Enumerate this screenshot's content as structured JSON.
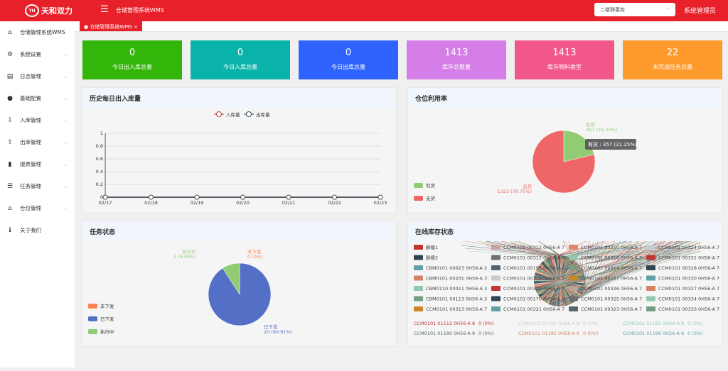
{
  "header": {
    "logo_text": "天和双力",
    "app_title": "仓储管理系统WMS",
    "warehouse_select": "二楼静置库",
    "user": "系统管理员"
  },
  "sidebar": {
    "items": [
      {
        "label": "仓储管理系统WMS",
        "icon": "home-icon",
        "glyph": "⌂",
        "chev": false
      },
      {
        "label": "系统设置",
        "icon": "gear-icon",
        "glyph": "⚙",
        "chev": true
      },
      {
        "label": "日志管理",
        "icon": "log-icon",
        "glyph": "▤",
        "chev": true
      },
      {
        "label": "基础配置",
        "icon": "config-icon",
        "glyph": "●",
        "chev": true
      },
      {
        "label": "入库管理",
        "icon": "inbound-icon",
        "glyph": "⇩",
        "chev": true
      },
      {
        "label": "出库管理",
        "icon": "outbound-icon",
        "glyph": "⇧",
        "chev": true
      },
      {
        "label": "报表管理",
        "icon": "bar-chart-icon",
        "glyph": "▮",
        "chev": true
      },
      {
        "label": "任务管理",
        "icon": "task-icon",
        "glyph": "☰",
        "chev": true
      },
      {
        "label": "仓位管理",
        "icon": "location-icon",
        "glyph": "⌂",
        "chev": true
      },
      {
        "label": "关于我们",
        "icon": "info-icon",
        "glyph": "ℹ",
        "chev": false
      }
    ]
  },
  "tabs": [
    {
      "label": "仓储管理系统WMS",
      "close": "×"
    }
  ],
  "cards": [
    {
      "value": "0",
      "label": "今日出入库总量",
      "color": "#33b50a"
    },
    {
      "value": "0",
      "label": "今日入库总量",
      "color": "#0ab3aa"
    },
    {
      "value": "0",
      "label": "今日出库总量",
      "color": "#2f63fd"
    },
    {
      "value": "1413",
      "label": "库存总数量",
      "color": "#d67ee8"
    },
    {
      "value": "1413",
      "label": "库存物料类型",
      "color": "#f2578a"
    },
    {
      "value": "22",
      "label": "未完成任务总量",
      "color": "#fd9a2b"
    }
  ],
  "panels": {
    "history": "历史每日出入库量",
    "utilization": "仓位利用率",
    "task_status": "任务状态",
    "inventory": "在线库存状态"
  },
  "chart_data": [
    {
      "type": "line",
      "x": [
        "02/17",
        "02/18",
        "02/19",
        "02/20",
        "02/21",
        "02/22",
        "02/23"
      ],
      "ylim": [
        0,
        1
      ],
      "yticks": [
        "0",
        "0.2",
        "0.4",
        "0.6",
        "0.8",
        "1"
      ],
      "legend": "top-center",
      "grid": true,
      "series": [
        {
          "name": "入库量",
          "values": [
            0,
            0,
            0,
            0,
            0,
            0,
            0
          ],
          "color": "#c23531"
        },
        {
          "name": "出库量",
          "values": [
            0,
            0,
            0,
            0,
            0,
            0,
            0
          ],
          "color": "#2f4554"
        }
      ]
    },
    {
      "type": "pie",
      "legend": "bottom-left",
      "slices": [
        {
          "name": "有货",
          "value": 357,
          "pct": "21.25%",
          "color": "#91cc75"
        },
        {
          "name": "无货",
          "value": 1323,
          "pct": "78.75%",
          "color": "#ee6666"
        }
      ],
      "tooltip": "有货 : 357 (21.25%)"
    },
    {
      "type": "pie",
      "legend": "bottom-left",
      "slices": [
        {
          "name": "未下发",
          "value": 0,
          "pct": "0%",
          "color": "#fc8452"
        },
        {
          "name": "已下发",
          "value": 20,
          "pct": "90.91%",
          "color": "#5470c6"
        },
        {
          "name": "执行中",
          "value": 2,
          "pct": "9.09%",
          "color": "#91cc75"
        }
      ]
    },
    {
      "type": "pie",
      "legend": "grid",
      "series_names": [
        "静模1",
        "CCM0101 00312 0H56-A 7",
        "CCM0101 00310 0H56-A 7",
        "CCM0101 00324 0H56-A 7",
        "静模2",
        "CCM0101 00311 0H56-A 7",
        "CCM0101 00318 0H56-A 7",
        "CCM0101 00331 0H56-A 7",
        "CBM0101 00023 0H56-A 2",
        "CCM0101 00193 0H56-A 7",
        "CCM0101 00314 0H56-A 7",
        "CCM0101 00328 0H56-A 7",
        "CBM0101 00201 0H56-A 3",
        "CCM0101 00319 0H56-A 7",
        "CCM0101 00157 0H56-A 7",
        "CCM0101 00330 0H56-A 7",
        "CBM0110 00011 0H56-A 3",
        "CCM0101 00320 0H56-A 7",
        "CCM0101 00326 0H56-A 7",
        "CCM0101 00327 0H56-A 7",
        "CBM0101 00113 0H56-A 3",
        "CCM0101 00170 0H56-A 7",
        "CCM0101 00325 0H56-A 7",
        "CCM0101 00334 0H56-A 7",
        "CCM0101 00313 0H56-A 7",
        "CCM0101 00321 0H56-A 7",
        "CCM0101 00323 0H56-A 7",
        "CCM0101 00333 0H56-A 7"
      ],
      "palette": [
        "#c23531",
        "#c4a49c",
        "#dd8668",
        "#c4ccd3",
        "#2f4554",
        "#6e7074",
        "#8fcbae",
        "#c23531",
        "#61a0a8",
        "#546570",
        "#749f83",
        "#2f4554",
        "#d48265",
        "#c4ccd3",
        "#ca8622",
        "#61a0a8",
        "#91c7ae",
        "#c23531",
        "#bda29a",
        "#d48265",
        "#749f83",
        "#2f4554",
        "#6e7074",
        "#91c7ae",
        "#ca8622",
        "#61a0a8",
        "#546570",
        "#749f83"
      ],
      "labels": [
        "CCM0101 01112 0H56-A 8",
        "CCM0101 01182 0H56-A 8",
        "CCM0101 01181 0H56-A 8",
        "CCM0101 01180 0H56-A 8",
        "CCM0101 01185 0H56-A 8",
        "CCM0101 01186 0H56-A 8"
      ],
      "label_value": "0 (0%)"
    }
  ]
}
